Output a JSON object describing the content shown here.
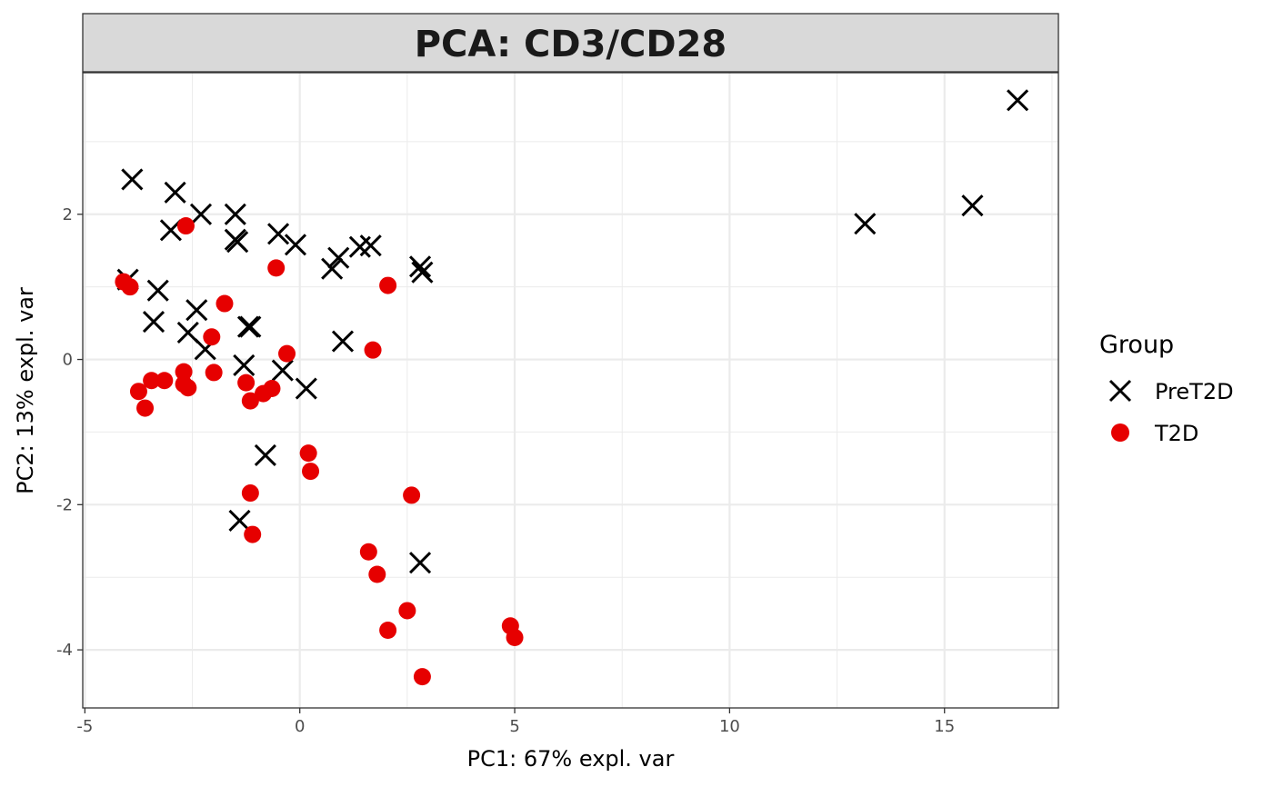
{
  "chart_data": {
    "type": "scatter",
    "title": "PCA: CD3/CD28",
    "xlabel": "PC1: 67% expl. var",
    "ylabel": "PC2: 13% expl. var",
    "xlim": [
      -5.05,
      17.65
    ],
    "ylim": [
      -4.8,
      3.95
    ],
    "x_ticks": [
      -5,
      0,
      5,
      10,
      15
    ],
    "x_tick_labels": [
      "-5",
      "0",
      "5",
      "10",
      "15"
    ],
    "y_ticks": [
      -4,
      -2,
      0,
      2
    ],
    "y_tick_labels": [
      "-4",
      "-2",
      "0",
      "2"
    ],
    "grid": true,
    "legend": {
      "title": "Group",
      "position": "right",
      "entries": [
        {
          "label": "PreT2D",
          "shape": "cross",
          "color": "#000000"
        },
        {
          "label": "T2D",
          "shape": "circle",
          "color": "#e60000"
        }
      ]
    },
    "series": [
      {
        "name": "PreT2D",
        "shape": "cross",
        "color": "#000000",
        "points": [
          [
            -3.9,
            2.48
          ],
          [
            -2.9,
            2.3
          ],
          [
            -2.3,
            2.0
          ],
          [
            -1.5,
            2.0
          ],
          [
            -3.0,
            1.78
          ],
          [
            -1.5,
            1.65
          ],
          [
            -1.45,
            1.62
          ],
          [
            -0.5,
            1.73
          ],
          [
            -0.1,
            1.58
          ],
          [
            0.9,
            1.4
          ],
          [
            1.4,
            1.55
          ],
          [
            1.65,
            1.57
          ],
          [
            0.75,
            1.25
          ],
          [
            2.8,
            1.28
          ],
          [
            2.85,
            1.2
          ],
          [
            -4.0,
            1.1
          ],
          [
            -3.3,
            0.95
          ],
          [
            -2.4,
            0.68
          ],
          [
            -3.4,
            0.52
          ],
          [
            -1.2,
            0.45
          ],
          [
            -2.6,
            0.37
          ],
          [
            -1.15,
            0.45
          ],
          [
            -2.2,
            0.14
          ],
          [
            1.0,
            0.25
          ],
          [
            -1.3,
            -0.08
          ],
          [
            -0.4,
            -0.15
          ],
          [
            0.15,
            -0.4
          ],
          [
            -0.8,
            -1.32
          ],
          [
            -1.4,
            -2.22
          ],
          [
            2.8,
            -2.8
          ],
          [
            13.15,
            1.87
          ],
          [
            15.65,
            2.12
          ],
          [
            16.7,
            3.57
          ]
        ]
      },
      {
        "name": "T2D",
        "shape": "circle",
        "color": "#e60000",
        "points": [
          [
            -2.65,
            1.84
          ],
          [
            -0.55,
            1.26
          ],
          [
            2.05,
            1.02
          ],
          [
            -4.1,
            1.07
          ],
          [
            -3.95,
            1.0
          ],
          [
            -1.75,
            0.77
          ],
          [
            -2.05,
            0.31
          ],
          [
            -0.3,
            0.08
          ],
          [
            1.7,
            0.13
          ],
          [
            -2.7,
            -0.17
          ],
          [
            -2.0,
            -0.18
          ],
          [
            -3.45,
            -0.29
          ],
          [
            -3.15,
            -0.29
          ],
          [
            -2.7,
            -0.34
          ],
          [
            -2.6,
            -0.39
          ],
          [
            -1.25,
            -0.32
          ],
          [
            -3.75,
            -0.44
          ],
          [
            -0.65,
            -0.4
          ],
          [
            -0.85,
            -0.47
          ],
          [
            -1.15,
            -0.57
          ],
          [
            -3.6,
            -0.67
          ],
          [
            0.2,
            -1.29
          ],
          [
            0.25,
            -1.54
          ],
          [
            -1.15,
            -1.84
          ],
          [
            2.6,
            -1.87
          ],
          [
            -1.1,
            -2.41
          ],
          [
            1.6,
            -2.65
          ],
          [
            1.8,
            -2.96
          ],
          [
            2.5,
            -3.46
          ],
          [
            2.05,
            -3.73
          ],
          [
            4.9,
            -3.67
          ],
          [
            5.0,
            -3.83
          ],
          [
            2.85,
            -4.37
          ]
        ]
      }
    ]
  }
}
